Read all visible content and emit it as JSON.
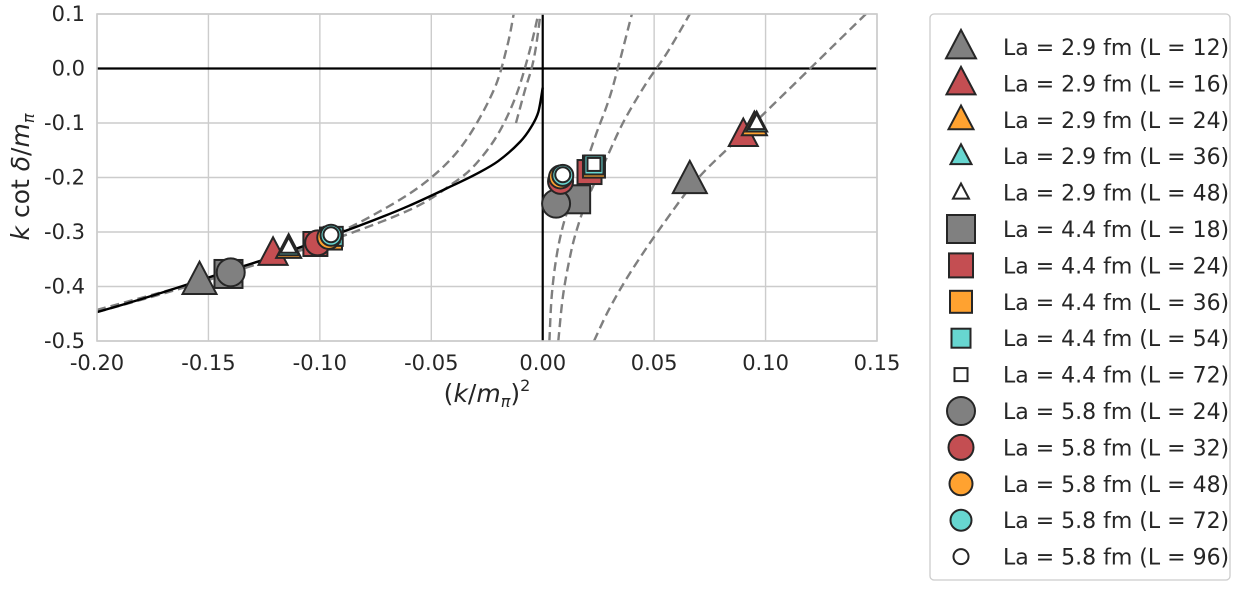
{
  "chart_data": {
    "type": "scatter",
    "title": "",
    "xlabel": "(k/m_π)²",
    "ylabel": "k cot δ / m_π",
    "xlim": [
      -0.2,
      0.15
    ],
    "ylim": [
      -0.5,
      0.1
    ],
    "grid": true,
    "legend_position": "outside-right",
    "xticks": [
      -0.2,
      -0.15,
      -0.1,
      -0.05,
      0.0,
      0.05,
      0.1,
      0.15
    ],
    "xtick_labels": [
      "-0.20",
      "-0.15",
      "-0.10",
      "-0.05",
      "0.00",
      "0.05",
      "0.10",
      "0.15"
    ],
    "yticks": [
      0.1,
      0.0,
      -0.1,
      -0.2,
      -0.3,
      -0.4,
      -0.5
    ],
    "ytick_labels": [
      "0.1",
      "0.0",
      "-0.1",
      "-0.2",
      "-0.3",
      "-0.4",
      "-0.5"
    ],
    "colors": {
      "grey": "#808080",
      "red": "#c44e52",
      "orange": "#ffa230",
      "cyan": "#67d6d0",
      "white": "#ffffff",
      "edge": "#262626",
      "grid": "#cccccc",
      "dashed": "#7f7f7f"
    },
    "series": [
      {
        "name": "La = 2.9 fm (L = 12)",
        "marker": "triangle",
        "color": "#808080",
        "size": 34,
        "points": [
          [
            -0.154,
            -0.39
          ],
          [
            0.066,
            -0.205
          ]
        ]
      },
      {
        "name": "La = 2.9 fm (L = 16)",
        "marker": "triangle",
        "color": "#c44e52",
        "size": 29,
        "points": [
          [
            -0.121,
            -0.34
          ],
          [
            0.09,
            -0.122
          ]
        ]
      },
      {
        "name": "La = 2.9 fm (L = 24)",
        "marker": "triangle",
        "color": "#ffa230",
        "size": 25,
        "points": [
          [
            -0.114,
            -0.33
          ],
          [
            0.095,
            -0.105
          ]
        ]
      },
      {
        "name": "La = 2.9 fm (L = 36)",
        "marker": "triangle",
        "color": "#67d6d0",
        "size": 21,
        "points": [
          [
            -0.114,
            -0.328
          ],
          [
            0.096,
            -0.101
          ]
        ]
      },
      {
        "name": "La = 2.9 fm (L = 48)",
        "marker": "triangle",
        "color": "#ffffff",
        "size": 16,
        "points": [
          [
            -0.114,
            -0.327
          ],
          [
            0.096,
            -0.1
          ]
        ]
      },
      {
        "name": "La = 4.4 fm (L = 18)",
        "marker": "square",
        "color": "#808080",
        "size": 28,
        "points": [
          [
            -0.141,
            -0.377
          ],
          [
            0.015,
            -0.24
          ]
        ]
      },
      {
        "name": "La = 4.4 fm (L = 24)",
        "marker": "square",
        "color": "#c44e52",
        "size": 24,
        "points": [
          [
            -0.102,
            -0.322
          ],
          [
            0.021,
            -0.19
          ]
        ]
      },
      {
        "name": "La = 4.4 fm (L = 36)",
        "marker": "square",
        "color": "#ffa230",
        "size": 22,
        "points": [
          [
            -0.095,
            -0.312
          ],
          [
            0.023,
            -0.18
          ]
        ]
      },
      {
        "name": "La = 4.4 fm (L = 54)",
        "marker": "square",
        "color": "#67d6d0",
        "size": 19,
        "points": [
          [
            -0.094,
            -0.308
          ],
          [
            0.023,
            -0.177
          ]
        ]
      },
      {
        "name": "La = 4.4 fm (L = 72)",
        "marker": "square",
        "color": "#ffffff",
        "size": 13,
        "points": [
          [
            -0.094,
            -0.307
          ],
          [
            0.023,
            -0.176
          ]
        ]
      },
      {
        "name": "La = 5.8 fm (L = 24)",
        "marker": "circle",
        "color": "#808080",
        "size": 28,
        "points": [
          [
            -0.14,
            -0.374
          ],
          [
            0.006,
            -0.248
          ]
        ]
      },
      {
        "name": "La = 5.8 fm (L = 32)",
        "marker": "circle",
        "color": "#c44e52",
        "size": 25,
        "points": [
          [
            -0.101,
            -0.32
          ],
          [
            0.008,
            -0.207
          ]
        ]
      },
      {
        "name": "La = 5.8 fm (L = 48)",
        "marker": "circle",
        "color": "#ffa230",
        "size": 23,
        "points": [
          [
            -0.096,
            -0.31
          ],
          [
            0.008,
            -0.199
          ]
        ]
      },
      {
        "name": "La = 5.8 fm (L = 72)",
        "marker": "circle",
        "color": "#67d6d0",
        "size": 21,
        "points": [
          [
            -0.095,
            -0.306
          ],
          [
            0.009,
            -0.196
          ]
        ]
      },
      {
        "name": "La = 5.8 fm (L = 96)",
        "marker": "circle",
        "color": "#ffffff",
        "size": 15,
        "points": [
          [
            -0.095,
            -0.305
          ],
          [
            0.009,
            -0.195
          ]
        ]
      }
    ],
    "solid_curve": {
      "x": [
        -0.2,
        -0.18,
        -0.16,
        -0.14,
        -0.12,
        -0.1,
        -0.08,
        -0.06,
        -0.04,
        -0.03,
        -0.02,
        -0.01,
        -0.005,
        -0.002,
        0.0
      ],
      "y": [
        -0.447,
        -0.423,
        -0.397,
        -0.37,
        -0.344,
        -0.315,
        -0.285,
        -0.252,
        -0.214,
        -0.194,
        -0.17,
        -0.134,
        -0.106,
        -0.08,
        -0.035
      ]
    },
    "dashed_curves": [
      {
        "x": [
          -0.2,
          -0.15,
          -0.1,
          -0.06,
          -0.04,
          -0.03,
          -0.02,
          -0.012,
          -0.006,
          -0.002
        ],
        "y": [
          -0.443,
          -0.386,
          -0.322,
          -0.26,
          -0.21,
          -0.175,
          -0.12,
          -0.05,
          0.03,
          0.1
        ]
      },
      {
        "x": [
          -0.2,
          -0.15,
          -0.1,
          -0.07,
          -0.05,
          -0.035,
          -0.022,
          -0.016,
          -0.013
        ],
        "y": [
          -0.447,
          -0.388,
          -0.316,
          -0.255,
          -0.2,
          -0.135,
          -0.04,
          0.04,
          0.1
        ]
      },
      {
        "x": [
          -0.012,
          -0.008,
          -0.005,
          -0.003,
          -0.001
        ],
        "y": [
          -0.1,
          -0.04,
          0.0,
          0.04,
          0.1
        ]
      },
      {
        "x": [
          0.003,
          0.004,
          0.006,
          0.009,
          0.013,
          0.018,
          0.024,
          0.031,
          0.04
        ],
        "y": [
          -0.5,
          -0.42,
          -0.35,
          -0.29,
          -0.24,
          -0.19,
          -0.12,
          -0.04,
          0.1
        ]
      },
      {
        "x": [
          0.007,
          0.009,
          0.012,
          0.015,
          0.02,
          0.028,
          0.036,
          0.046,
          0.056,
          0.066
        ],
        "y": [
          -0.5,
          -0.42,
          -0.35,
          -0.3,
          -0.24,
          -0.17,
          -0.1,
          -0.03,
          0.03,
          0.1
        ]
      },
      {
        "x": [
          0.023,
          0.03,
          0.04,
          0.055,
          0.07,
          0.09,
          0.11,
          0.13,
          0.145
        ],
        "y": [
          -0.5,
          -0.44,
          -0.37,
          -0.28,
          -0.2,
          -0.12,
          -0.04,
          0.04,
          0.1
        ]
      }
    ]
  }
}
